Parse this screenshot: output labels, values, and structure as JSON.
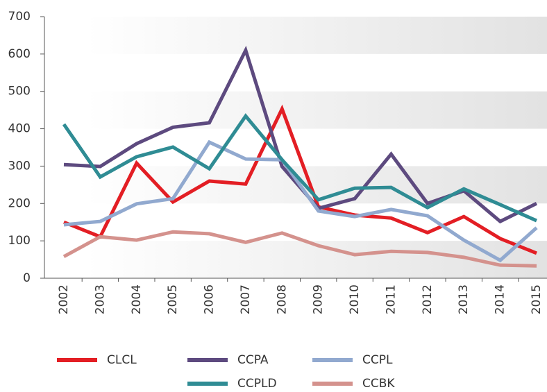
{
  "chart_data": {
    "type": "line",
    "categories": [
      "2002",
      "2003",
      "2004",
      "2005",
      "2006",
      "2007",
      "2008",
      "2009",
      "2010",
      "2011",
      "2012",
      "2013",
      "2014",
      "2015"
    ],
    "series": [
      {
        "name": "CLCL",
        "color": "#e31e24",
        "values": [
          150,
          111,
          308,
          204,
          260,
          252,
          453,
          191,
          169,
          161,
          122,
          165,
          106,
          67
        ]
      },
      {
        "name": "CCPA",
        "color": "#5d4a7f",
        "values": [
          304,
          299,
          360,
          404,
          416,
          610,
          299,
          187,
          213,
          332,
          200,
          234,
          152,
          200
        ]
      },
      {
        "name": "CCPL",
        "color": "#91a9cf",
        "values": [
          143,
          152,
          199,
          213,
          364,
          319,
          317,
          180,
          165,
          184,
          167,
          102,
          48,
          135
        ]
      },
      {
        "name": "CCPLD",
        "color": "#2f8c94",
        "values": [
          412,
          271,
          325,
          351,
          293,
          434,
          317,
          210,
          241,
          243,
          189,
          239,
          197,
          154
        ]
      },
      {
        "name": "CCBK",
        "color": "#d4928d",
        "values": [
          58,
          111,
          102,
          124,
          119,
          96,
          121,
          87,
          63,
          72,
          69,
          56,
          35,
          33
        ]
      }
    ],
    "ylim": [
      0,
      700
    ],
    "yticks": [
      0,
      100,
      200,
      300,
      400,
      500,
      600,
      700
    ],
    "grid": true
  }
}
